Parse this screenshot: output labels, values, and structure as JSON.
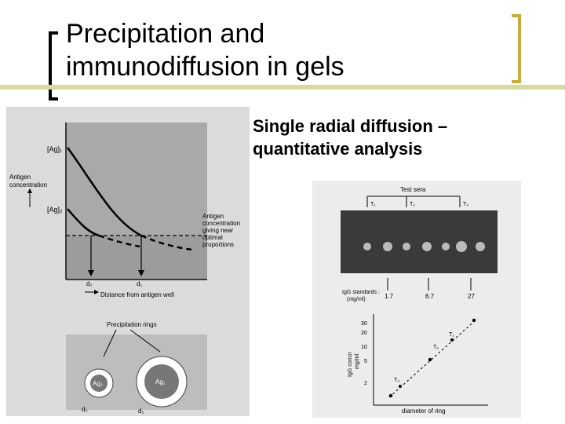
{
  "title": {
    "line1": "Precipitation and",
    "line2": "immunodiffusion in gels"
  },
  "bullet": {
    "line1": "Single radial diffusion –",
    "line2": "quantitative analysis"
  },
  "left_figure": {
    "ag1_label": "[Ag]₁",
    "ag2_label": "[Ag]₂",
    "y_axis_label_1": "Antigen",
    "y_axis_label_2": "concentration",
    "annotation_1": "Antigen",
    "annotation_2": "concentration",
    "annotation_3": "giving near",
    "annotation_4": "optimal",
    "annotation_5": "proportions",
    "d2_label": "d₂",
    "d1_label": "d₁",
    "x_axis_label": "Distance from antigen well",
    "rings_label": "Precipitation rings",
    "ring_ag2": "Ag₂",
    "ring_ag1": "Ag₁",
    "ring_d2": "d₂",
    "ring_d1": "d₁"
  },
  "right_figure": {
    "test_sera_label": "Test sera",
    "t1": "T₁",
    "t2": "T₂",
    "t3": "T₃",
    "standards_label_1": "IgG standards :",
    "standards_label_2": "(mg/ml)",
    "std_1": "1.7",
    "std_2": "6.7",
    "std_3": "27",
    "y_label_1": "IgG concn",
    "y_label_2": "mg/ml",
    "y_ticks": [
      "30",
      "20",
      "10",
      "5",
      "2"
    ],
    "x_axis_label": "diameter of ring",
    "point_t1": "T₁",
    "point_t2": "T₂",
    "point_t3": "T₃"
  }
}
